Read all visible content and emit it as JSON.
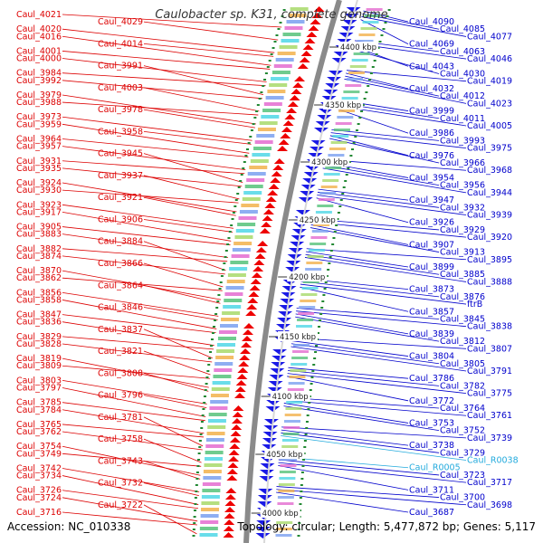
{
  "title": "Caulobacter sp. K31, complete genome",
  "accession": "Accession: NC_010338",
  "topology": "Topology: circular; Length: 5,477,872 bp; Genes: 5,117",
  "colors": {
    "left_label": "#dd0000",
    "right_label": "#0000cc",
    "rna_label": "#22aadd",
    "backbone": "#888888",
    "forward_arrow": "#ee0000",
    "reverse_arrow": "#1a1ae6",
    "tick_mark": "#228833"
  },
  "ticks": [
    "4400 kbp",
    "4350 kbp",
    "4300 kbp",
    "4250 kbp",
    "4200 kbp",
    "4150 kbp",
    "4100 kbp",
    "4050 kbp",
    "4000 kbp"
  ],
  "left_labels": [
    "Caul_4021",
    "Caul_4029",
    "Caul_4020",
    "Caul_4016",
    "Caul_4014",
    "Caul_4001",
    "Caul_4000",
    "Caul_3991",
    "Caul_3984",
    "Caul_3992",
    "Caul_4003",
    "Caul_3979",
    "Caul_3988",
    "Caul_3978",
    "Caul_3973",
    "Caul_3959",
    "Caul_3958",
    "Caul_3964",
    "Caul_3957",
    "Caul_3945",
    "Caul_3931",
    "Caul_3935",
    "Caul_3937",
    "Caul_3924",
    "Caul_3930",
    "Caul_3921",
    "Caul_3923",
    "Caul_3917",
    "Caul_3906",
    "Caul_3905",
    "Caul_3883",
    "Caul_3884",
    "Caul_3882",
    "Caul_3874",
    "Caul_3866",
    "Caul_3870",
    "Caul_3862",
    "Caul_3864",
    "Caul_3856",
    "Caul_3858",
    "Caul_3846",
    "Caul_3847",
    "Caul_3836",
    "Caul_3837",
    "Caul_3829",
    "Caul_3828",
    "Caul_3821",
    "Caul_3819",
    "Caul_3809",
    "Caul_3808",
    "Caul_3803",
    "Caul_3797",
    "Caul_3796",
    "Caul_3785",
    "Caul_3784",
    "Caul_3781",
    "Caul_3765",
    "Caul_3762",
    "Caul_3758",
    "Caul_3754",
    "Caul_3749",
    "Caul_3743",
    "Caul_3742",
    "Caul_3734",
    "Caul_3732",
    "Caul_3726",
    "Caul_3724",
    "Caul_3722",
    "Caul_3716"
  ],
  "right_labels": [
    "Caul_4090",
    "Caul_4085",
    "Caul_4077",
    "Caul_4069",
    "Caul_4063",
    "Caul_4046",
    "Caul_4043",
    "Caul_4030",
    "Caul_4019",
    "Caul_4032",
    "Caul_4012",
    "Caul_4023",
    "Caul_3999",
    "Caul_4011",
    "Caul_4005",
    "Caul_3986",
    "Caul_3993",
    "Caul_3975",
    "Caul_3976",
    "Caul_3966",
    "Caul_3968",
    "Caul_3954",
    "Caul_3956",
    "Caul_3944",
    "Caul_3947",
    "Caul_3932",
    "Caul_3939",
    "Caul_3926",
    "Caul_3929",
    "Caul_3920",
    "Caul_3907",
    "Caul_3913",
    "Caul_3895",
    "Caul_3899",
    "Caul_3885",
    "Caul_3888",
    "Caul_3873",
    "Caul_3876",
    "ftrB",
    "Caul_3857",
    "Caul_3845",
    "Caul_3838",
    "Caul_3839",
    "Caul_3812",
    "Caul_3807",
    "Caul_3804",
    "Caul_3805",
    "Caul_3791",
    "Caul_3786",
    "Caul_3782",
    "Caul_3775",
    "Caul_3772",
    "Caul_3764",
    "Caul_3761",
    "Caul_3753",
    "Caul_3752",
    "Caul_3739",
    "Caul_3738",
    "Caul_3729",
    "Caul_R0038",
    "Caul_R0005",
    "Caul_3723",
    "Caul_3717",
    "Caul_3711",
    "Caul_3700",
    "Caul_3698",
    "Caul_3687"
  ],
  "rna_labels": [
    "Caul_R0038",
    "Caul_R0005"
  ]
}
